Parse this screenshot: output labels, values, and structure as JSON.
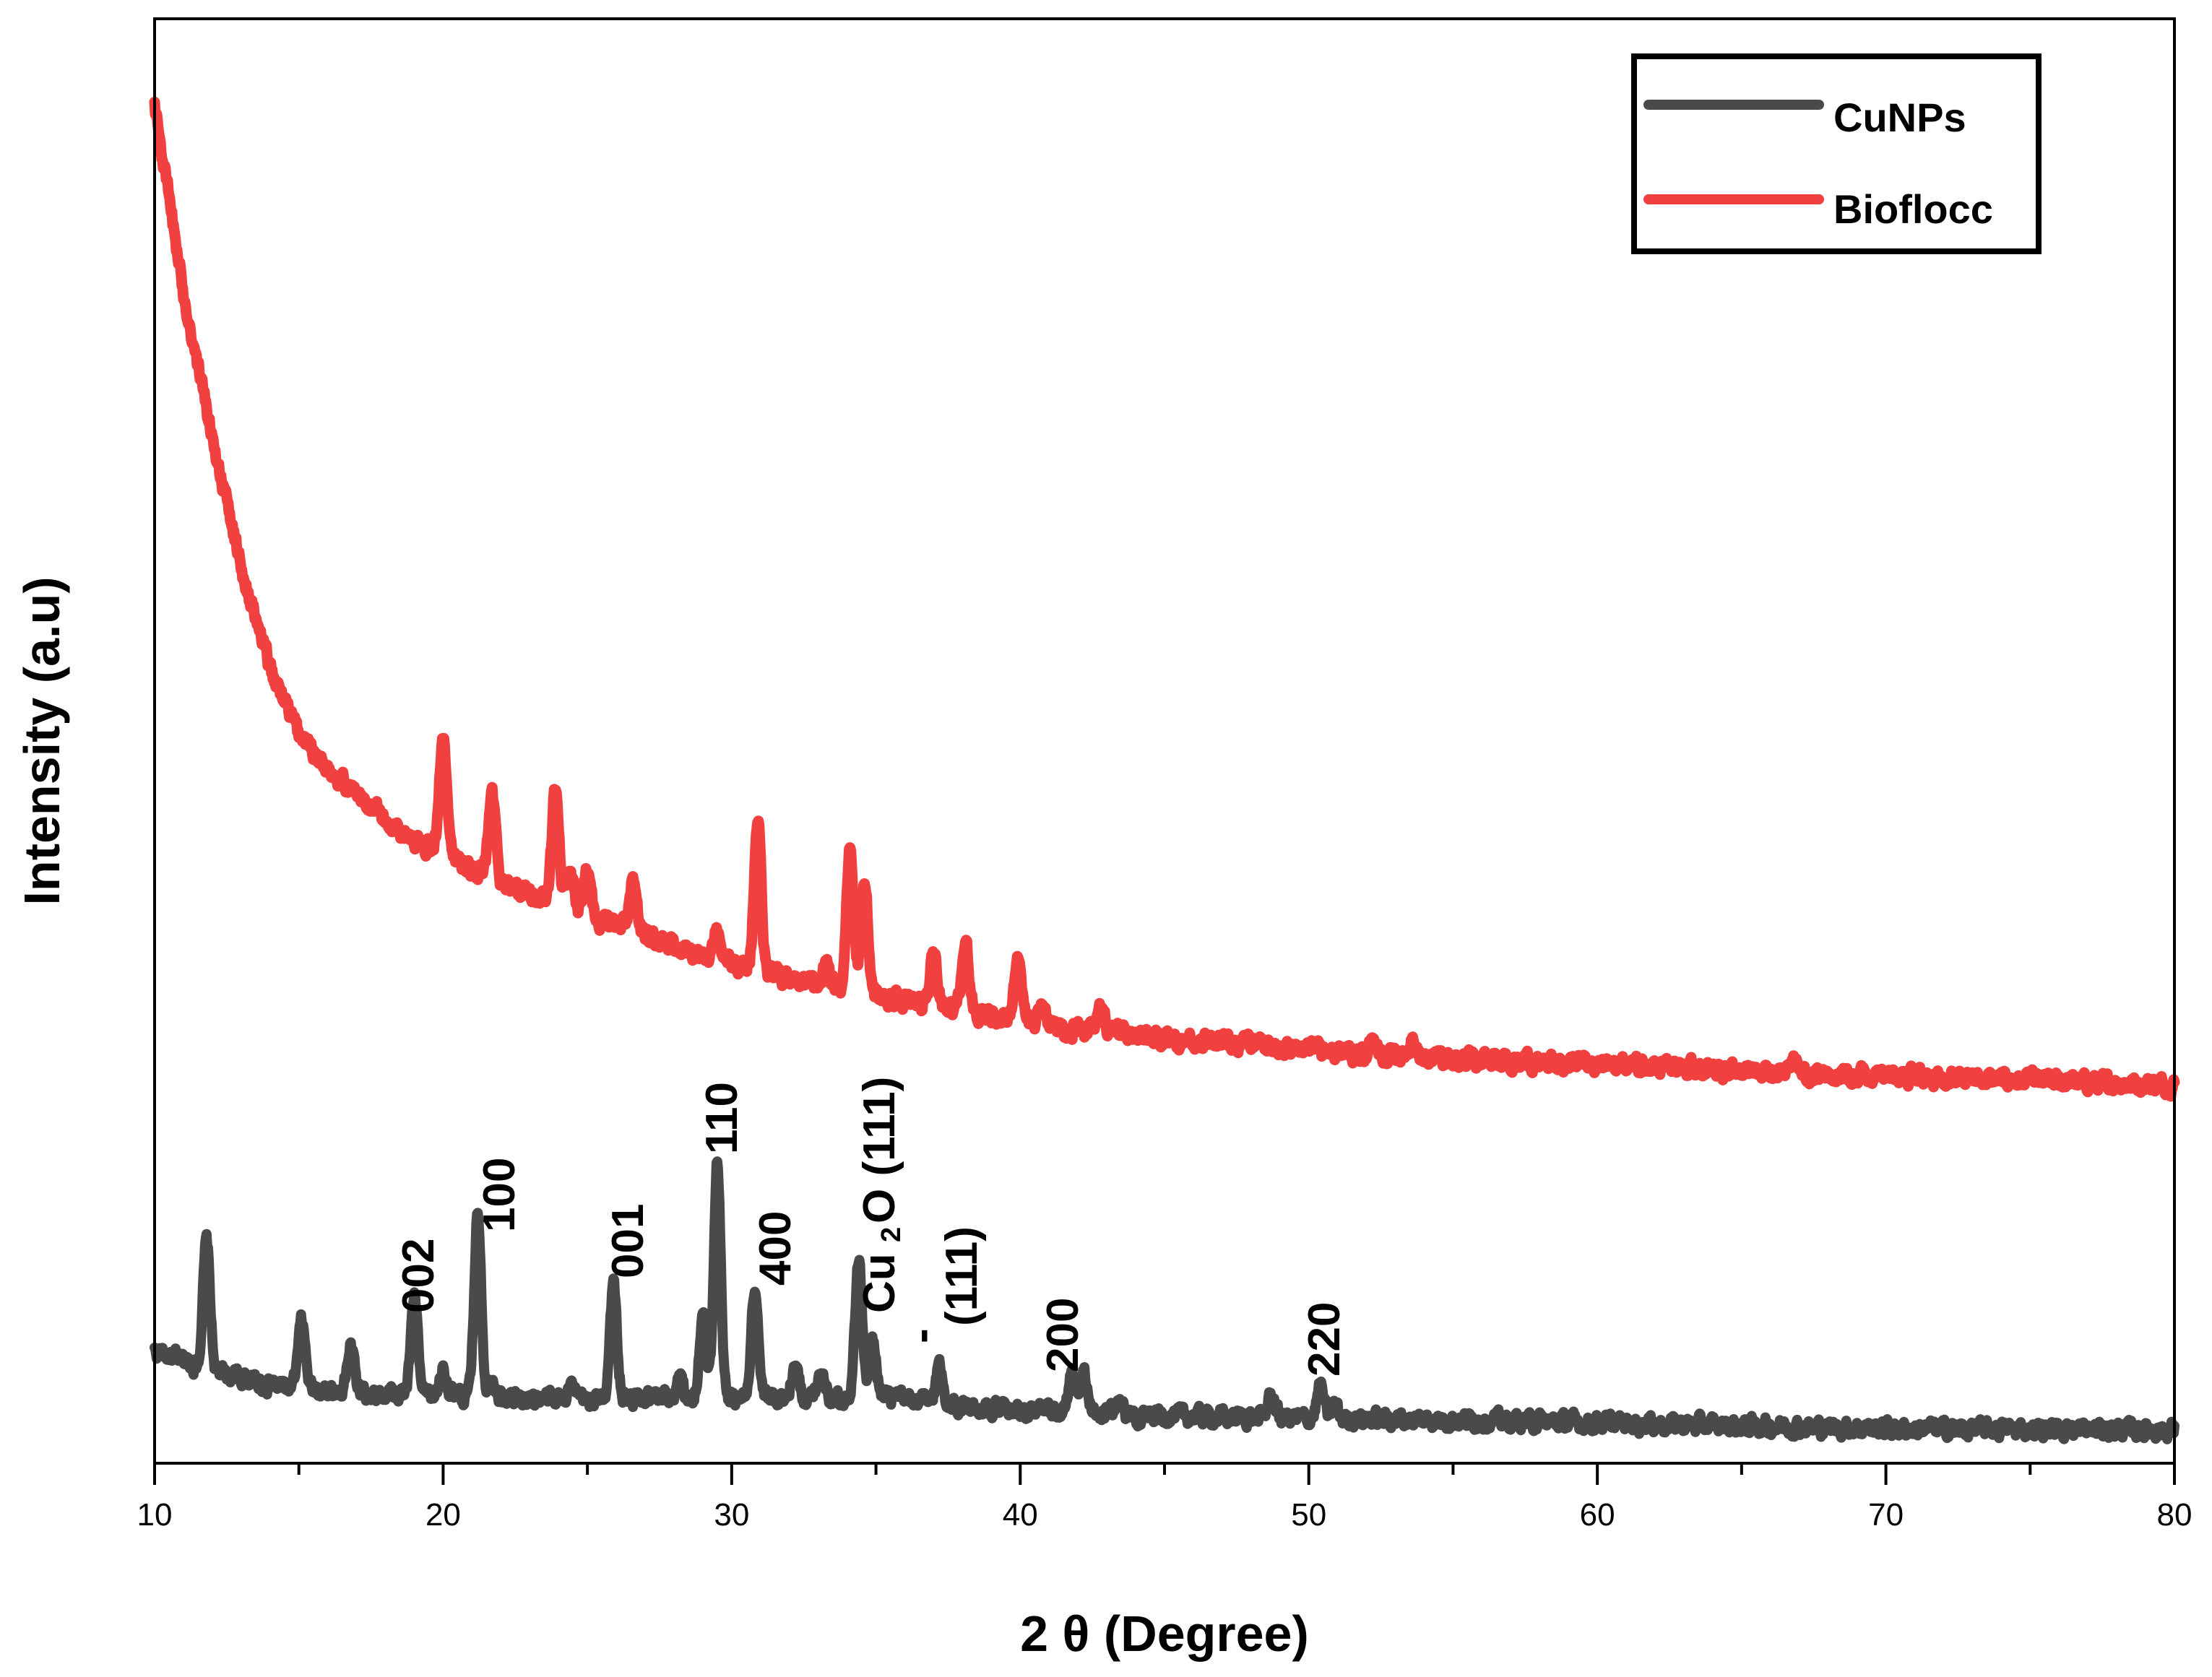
{
  "chart_data": {
    "type": "line",
    "title": "",
    "xlabel": "2 θ (Degree)",
    "ylabel": "Intensity (a.u)",
    "xlim": [
      10,
      80
    ],
    "ylim": [
      0,
      100
    ],
    "x_ticks": [
      "10",
      "20",
      "30",
      "40",
      "50",
      "60",
      "70",
      "80"
    ],
    "legend_position": "top-right",
    "series": [
      {
        "name": "CuNPs",
        "color": "#4a4a4a",
        "baseline": [
          [
            10,
            7.8
          ],
          [
            12,
            6.4
          ],
          [
            14,
            5.4
          ],
          [
            17,
            4.9
          ],
          [
            20,
            4.6
          ],
          [
            25,
            4.4
          ],
          [
            30,
            4.5
          ],
          [
            35,
            4.6
          ],
          [
            38,
            4.0
          ],
          [
            40,
            3.6
          ],
          [
            45,
            3.3
          ],
          [
            50,
            3.1
          ],
          [
            55,
            3.0
          ],
          [
            60,
            2.8
          ],
          [
            70,
            2.4
          ],
          [
            80,
            2.3
          ]
        ],
        "peaks": [
          [
            11.8,
            8.8
          ],
          [
            15.1,
            4.6
          ],
          [
            16.8,
            3.2
          ],
          [
            19.0,
            6.9
          ],
          [
            20.0,
            2.0
          ],
          [
            21.2,
            12.9
          ],
          [
            21.7,
            1.5
          ],
          [
            24.4,
            1.0
          ],
          [
            25.9,
            8.0
          ],
          [
            28.2,
            1.5
          ],
          [
            29.0,
            5.6
          ],
          [
            29.5,
            16.5
          ],
          [
            30.8,
            7.7
          ],
          [
            32.2,
            2.2
          ],
          [
            33.1,
            2.0
          ],
          [
            34.4,
            9.5
          ],
          [
            34.9,
            3.8
          ],
          [
            37.2,
            2.6
          ],
          [
            41.8,
            2.5
          ],
          [
            42.2,
            2.7
          ],
          [
            43.4,
            1.0
          ],
          [
            48.7,
            1.6
          ],
          [
            50.4,
            2.2
          ],
          [
            50.9,
            0.9
          ]
        ],
        "values_source": "baseline plus peaks"
      },
      {
        "name": "Bioflocc",
        "color": "#f04040",
        "baseline": [
          [
            10,
            94
          ],
          [
            11,
            81
          ],
          [
            12,
            71
          ],
          [
            13,
            62
          ],
          [
            14,
            55
          ],
          [
            15,
            50.5
          ],
          [
            16,
            48.2
          ],
          [
            17,
            46.3
          ],
          [
            18,
            44.5
          ],
          [
            19,
            43.2
          ],
          [
            20,
            42.1
          ],
          [
            22,
            40.2
          ],
          [
            24,
            38.6
          ],
          [
            26,
            37.2
          ],
          [
            28,
            35.8
          ],
          [
            30,
            34.6
          ],
          [
            32,
            33.5
          ],
          [
            34,
            32.7
          ],
          [
            36,
            32.0
          ],
          [
            38,
            31.4
          ],
          [
            40,
            30.6
          ],
          [
            42,
            30.0
          ],
          [
            45,
            29.4
          ],
          [
            48,
            29.0
          ],
          [
            50,
            28.6
          ],
          [
            55,
            28.0
          ],
          [
            60,
            27.6
          ],
          [
            65,
            27.2
          ],
          [
            70,
            26.8
          ],
          [
            75,
            26.5
          ],
          [
            80,
            26.2
          ]
        ],
        "peaks": [
          [
            20.0,
            8.5
          ],
          [
            21.7,
            5.5
          ],
          [
            23.9,
            8.4
          ],
          [
            24.4,
            2.5
          ],
          [
            25.0,
            3.0
          ],
          [
            26.6,
            3.7
          ],
          [
            29.5,
            1.7
          ],
          [
            30.9,
            10.5
          ],
          [
            33.3,
            1.5
          ],
          [
            34.1,
            10.0
          ],
          [
            34.6,
            8.0
          ],
          [
            37.0,
            3.7
          ],
          [
            38.1,
            4.5
          ],
          [
            39.9,
            4.2
          ],
          [
            40.8,
            1.3
          ],
          [
            42.8,
            1.4
          ],
          [
            52.2,
            1.1
          ],
          [
            53.6,
            0.9
          ],
          [
            66.8,
            0.9
          ]
        ],
        "values_source": "baseline plus peaks"
      }
    ],
    "annotations": [
      {
        "text": "002",
        "x": 19.0
      },
      {
        "text": "100",
        "x": 21.2
      },
      {
        "text": "001",
        "x": 25.9
      },
      {
        "text": "110",
        "x": 29.5
      },
      {
        "text": "400",
        "x": 30.8
      },
      {
        "text": "Cu",
        "x": 34.4
      },
      {
        "text": "2",
        "x": 34.4
      },
      {
        "text": "O (111)",
        "x": 34.4
      },
      {
        "text": "-",
        "x": 37.2
      },
      {
        "text": "(111)",
        "x": 37.2
      },
      {
        "text": "200",
        "x": 41.8
      },
      {
        "text": "220",
        "x": 50.4
      }
    ]
  }
}
